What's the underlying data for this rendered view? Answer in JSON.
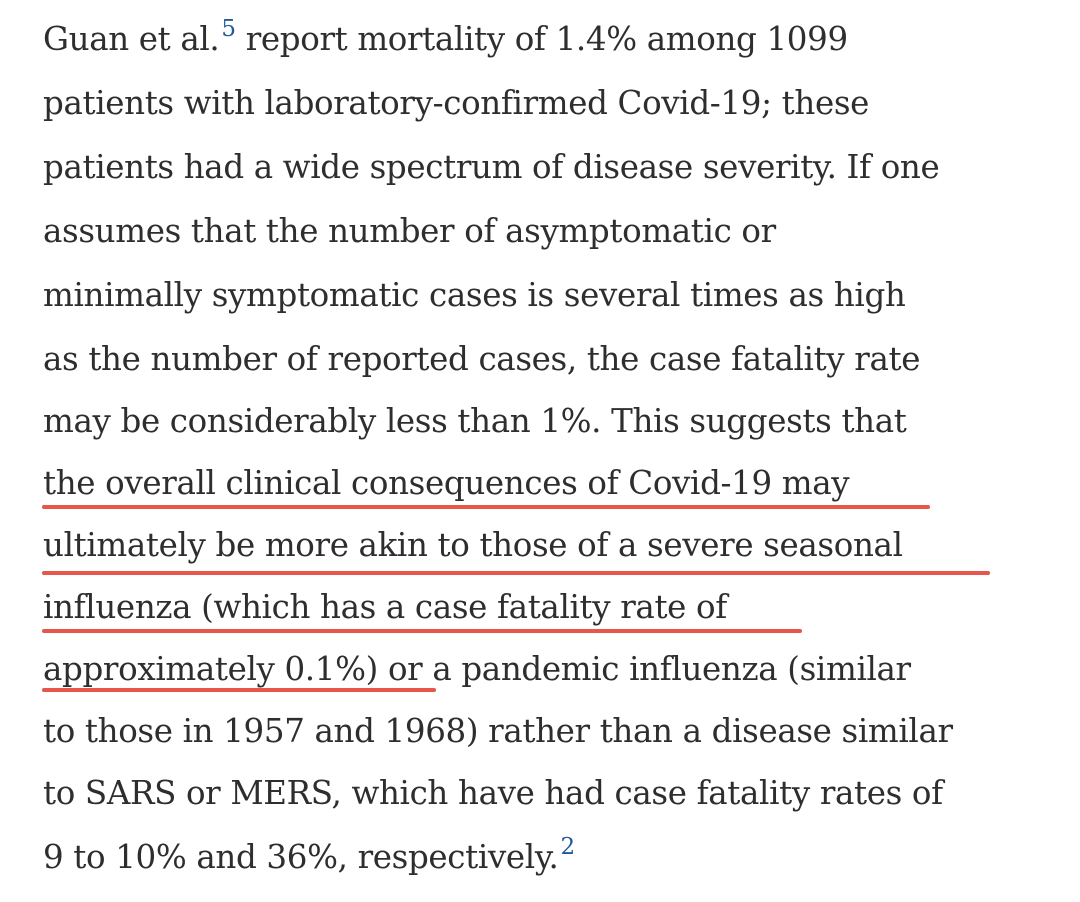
{
  "paragraph": {
    "lines": [
      {
        "before": "Guan et al.",
        "ref": "5",
        "after": " report mortality of 1.4% among 1099"
      },
      {
        "text": "patients with laboratory-confirmed Covid-19; these"
      },
      {
        "text": "patients had a wide spectrum of disease severity. If one"
      },
      {
        "text": "assumes that the number of asymptomatic or"
      },
      {
        "text": "minimally symptomatic cases is several times as high"
      },
      {
        "text": "as the number of reported cases, the case fatality rate"
      },
      {
        "text": "may be considerably less than 1%. This suggests that"
      },
      {
        "text": "the overall clinical consequences of Covid-19 may"
      },
      {
        "text": "ultimately be more akin to those of a severe seasonal"
      },
      {
        "text": "influenza (which has a case fatality rate of"
      },
      {
        "highlighted": "approximately 0.1%)",
        "rest": " or a pandemic influenza (similar"
      },
      {
        "text": "to those in 1957 and 1968) rather than a disease similar"
      },
      {
        "text": "to SARS or MERS, which have had case fatality rates of"
      },
      {
        "before": "9 to 10% and 36%, respectively.",
        "ref": "2"
      }
    ]
  },
  "colors": {
    "text": "#2e2e2e",
    "reference_link": "#1f5a9a",
    "highlight_underline": "#e8554a",
    "background": "#ffffff"
  }
}
